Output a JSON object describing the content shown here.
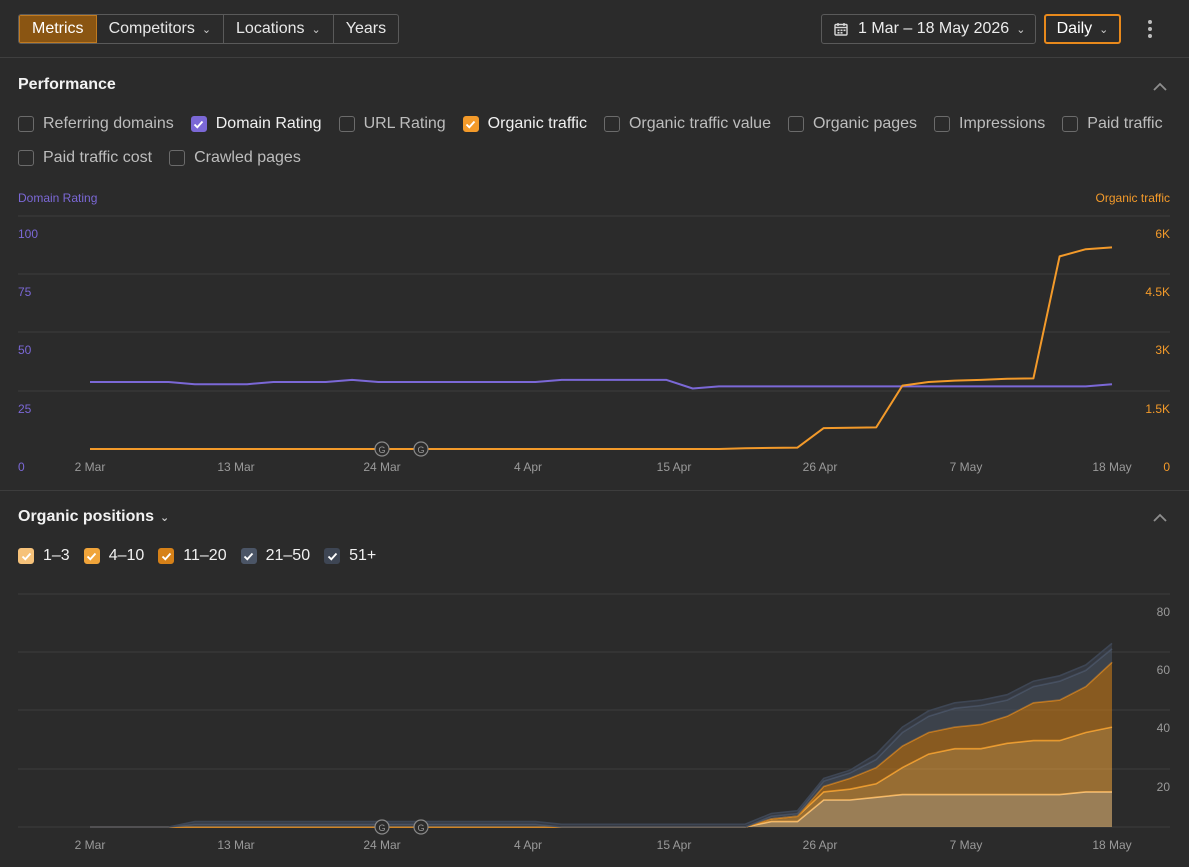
{
  "toolbar": {
    "tabs": [
      {
        "label": "Metrics"
      },
      {
        "label": "Competitors"
      },
      {
        "label": "Locations"
      },
      {
        "label": "Years"
      }
    ],
    "date_range": "1 Mar – 18 May 2026",
    "granularity": "Daily",
    "accent_color": "#e8891c"
  },
  "performance": {
    "title": "Performance",
    "metrics": [
      {
        "label": "Referring domains",
        "checked": false
      },
      {
        "label": "Domain Rating",
        "checked": true,
        "color": "#7b68d6"
      },
      {
        "label": "URL Rating",
        "checked": false
      },
      {
        "label": "Organic traffic",
        "checked": true,
        "color": "#f39a2a"
      },
      {
        "label": "Organic traffic value",
        "checked": false
      },
      {
        "label": "Organic pages",
        "checked": false
      },
      {
        "label": "Impressions",
        "checked": false
      },
      {
        "label": "Paid traffic",
        "checked": false
      },
      {
        "label": "Paid traffic cost",
        "checked": false
      },
      {
        "label": "Crawled pages",
        "checked": false
      }
    ],
    "left_axis_label": "Domain Rating",
    "right_axis_label": "Organic traffic",
    "left_ticks": [
      "100",
      "75",
      "50",
      "25",
      "0"
    ],
    "right_ticks": [
      "6K",
      "4.5K",
      "3K",
      "1.5K",
      "0"
    ],
    "x_ticks": [
      "2 Mar",
      "13 Mar",
      "24 Mar",
      "4 Apr",
      "15 Apr",
      "26 Apr",
      "7 May",
      "18 May"
    ],
    "annotation_marker": "G"
  },
  "positions": {
    "title": "Organic positions",
    "filters": [
      {
        "label": "1–3",
        "color": "#f6c27a"
      },
      {
        "label": "4–10",
        "color": "#f0a43a"
      },
      {
        "label": "11–20",
        "color": "#d68118"
      },
      {
        "label": "21–50",
        "color": "#4b5566"
      },
      {
        "label": "51+",
        "color": "#3e4654"
      }
    ],
    "y_ticks": [
      "80",
      "60",
      "40",
      "20"
    ],
    "x_ticks": [
      "2 Mar",
      "13 Mar",
      "24 Mar",
      "4 Apr",
      "15 Apr",
      "26 Apr",
      "7 May",
      "18 May"
    ],
    "annotation_marker": "G"
  },
  "chart_data": [
    {
      "type": "line",
      "title": "Performance",
      "x": [
        "2 Mar",
        "4 Mar",
        "6 Mar",
        "8 Mar",
        "10 Mar",
        "12 Mar",
        "14 Mar",
        "16 Mar",
        "18 Mar",
        "20 Mar",
        "22 Mar",
        "24 Mar",
        "26 Mar",
        "28 Mar",
        "30 Mar",
        "1 Apr",
        "3 Apr",
        "5 Apr",
        "7 Apr",
        "9 Apr",
        "11 Apr",
        "13 Apr",
        "15 Apr",
        "17 Apr",
        "19 Apr",
        "21 Apr",
        "23 Apr",
        "25 Apr",
        "27 Apr",
        "29 Apr",
        "1 May",
        "3 May",
        "5 May",
        "7 May",
        "9 May",
        "11 May",
        "13 May",
        "15 May",
        "17 May",
        "18 May"
      ],
      "series": [
        {
          "name": "Domain Rating",
          "axis": "left",
          "color": "#7b68d6",
          "values": [
            31,
            31,
            31,
            31,
            30,
            30,
            30,
            31,
            31,
            31,
            32,
            31,
            31,
            31,
            31,
            31,
            31,
            31,
            32,
            32,
            32,
            32,
            32,
            28,
            29,
            29,
            29,
            29,
            29,
            29,
            29,
            29,
            29,
            29,
            29,
            29,
            29,
            29,
            29,
            30
          ]
        },
        {
          "name": "Organic traffic",
          "axis": "right",
          "color": "#f39a2a",
          "values": [
            0,
            0,
            0,
            0,
            0,
            0,
            0,
            0,
            0,
            0,
            0,
            0,
            0,
            0,
            0,
            0,
            0,
            0,
            0,
            0,
            0,
            0,
            0,
            0,
            0,
            20,
            30,
            40,
            580,
            590,
            600,
            1760,
            1860,
            1900,
            1920,
            1950,
            1960,
            5350,
            5550,
            5600
          ]
        }
      ],
      "ylim_left": [
        0,
        100
      ],
      "ylim_right": [
        0,
        6000
      ],
      "grid": true
    },
    {
      "type": "area",
      "title": "Organic positions",
      "x": [
        "2 Mar",
        "4 Mar",
        "6 Mar",
        "8 Mar",
        "10 Mar",
        "12 Mar",
        "14 Mar",
        "16 Mar",
        "18 Mar",
        "20 Mar",
        "22 Mar",
        "24 Mar",
        "26 Mar",
        "28 Mar",
        "30 Mar",
        "1 Apr",
        "3 Apr",
        "5 Apr",
        "7 Apr",
        "9 Apr",
        "11 Apr",
        "13 Apr",
        "15 Apr",
        "17 Apr",
        "19 Apr",
        "21 Apr",
        "23 Apr",
        "25 Apr",
        "27 Apr",
        "29 Apr",
        "1 May",
        "3 May",
        "5 May",
        "7 May",
        "9 May",
        "11 May",
        "13 May",
        "15 May",
        "17 May",
        "18 May"
      ],
      "stacked": true,
      "series": [
        {
          "name": "1–3",
          "color": "#f6c27a",
          "values": [
            0,
            0,
            0,
            0,
            0,
            0,
            0,
            0,
            0,
            0,
            0,
            0,
            0,
            0,
            0,
            0,
            0,
            0,
            0,
            0,
            0,
            0,
            0,
            0,
            0,
            0,
            2,
            2,
            10,
            10,
            11,
            12,
            12,
            12,
            12,
            12,
            12,
            12,
            13,
            13
          ]
        },
        {
          "name": "4–10",
          "color": "#f0a43a",
          "values": [
            0,
            0,
            0,
            0,
            0,
            0,
            0,
            0,
            0,
            0,
            0,
            0,
            0,
            0,
            0,
            0,
            0,
            0,
            0,
            0,
            0,
            0,
            0,
            0,
            0,
            0,
            1,
            2,
            3,
            4,
            5,
            10,
            15,
            17,
            17,
            19,
            20,
            20,
            22,
            24
          ]
        },
        {
          "name": "11–20",
          "color": "#d68118",
          "values": [
            0,
            0,
            0,
            0,
            0,
            0,
            0,
            0,
            0,
            0,
            0,
            0,
            0,
            0,
            0,
            0,
            0,
            0,
            0,
            0,
            0,
            0,
            0,
            0,
            0,
            0,
            0,
            0,
            2,
            4,
            6,
            8,
            8,
            8,
            9,
            10,
            14,
            15,
            17,
            24
          ]
        },
        {
          "name": "21–50",
          "color": "#4b5566",
          "values": [
            0,
            0,
            0,
            0,
            1,
            1,
            1,
            1,
            1,
            1,
            1,
            1,
            1,
            1,
            1,
            1,
            1,
            1,
            0,
            0,
            0,
            0,
            0,
            0,
            0,
            0,
            1,
            1,
            2,
            2,
            3,
            5,
            6,
            7,
            7,
            6,
            6,
            7,
            6,
            5
          ]
        },
        {
          "name": "51+",
          "color": "#3e4654",
          "values": [
            0,
            0,
            0,
            0,
            1,
            1,
            1,
            1,
            1,
            1,
            1,
            1,
            1,
            1,
            1,
            1,
            1,
            1,
            1,
            1,
            1,
            1,
            1,
            1,
            1,
            1,
            1,
            1,
            1,
            1,
            2,
            2,
            2,
            2,
            2,
            2,
            2,
            2,
            2,
            2
          ]
        }
      ],
      "ylim": [
        0,
        80
      ],
      "grid": true
    }
  ]
}
